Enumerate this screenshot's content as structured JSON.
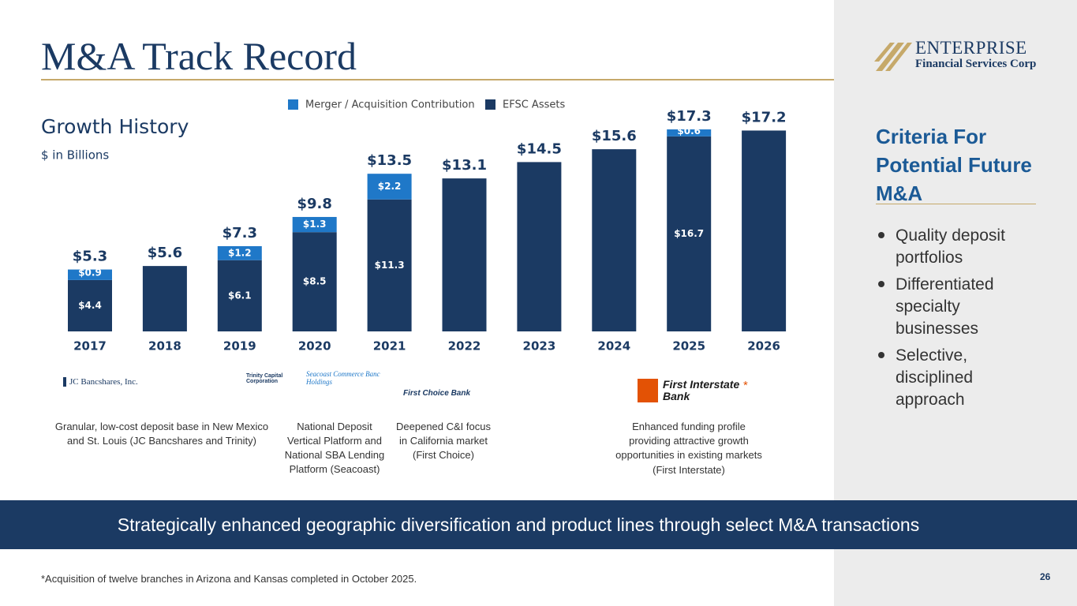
{
  "header": {
    "title": "M&A Track Record",
    "logo_name": "ENTERPRISE",
    "logo_sub": "Financial Services Corp"
  },
  "chart_data": {
    "type": "stacked-bar",
    "title": "Growth History",
    "subtitle": "$ in Billions",
    "categories": [
      "2017",
      "2018",
      "2019",
      "2020",
      "2021",
      "2022",
      "2023",
      "2024",
      "2025",
      "2026"
    ],
    "series": [
      {
        "name": "EFSC Assets",
        "color": "#1b3a63",
        "values": [
          4.4,
          5.6,
          6.1,
          8.5,
          11.3,
          13.1,
          14.5,
          15.6,
          16.7,
          17.2
        ],
        "value_labels": [
          "$4.4",
          null,
          "$6.1",
          "$8.5",
          "$11.3",
          null,
          null,
          null,
          "$16.7",
          null
        ]
      },
      {
        "name": "Merger / Acquisition Contribution",
        "color": "#1f78c8",
        "values": [
          0.9,
          null,
          1.2,
          1.3,
          2.2,
          null,
          null,
          null,
          0.6,
          null
        ],
        "value_labels": [
          "$0.9",
          null,
          "$1.2",
          "$1.3",
          "$2.2",
          null,
          null,
          null,
          "$0.6",
          null
        ]
      }
    ],
    "totals": [
      5.3,
      5.6,
      7.3,
      9.8,
      13.5,
      13.1,
      14.5,
      15.6,
      17.3,
      17.2
    ],
    "total_labels": [
      "$5.3",
      "$5.6",
      "$7.3",
      "$9.8",
      "$13.5",
      "$13.1",
      "$14.5",
      "$15.6",
      "$17.3",
      "$17.2"
    ]
  },
  "logos": [
    "JC Bancshares, Inc.",
    "Trinity Capital Corporation",
    "Seacoast Commerce Banc Holdings",
    "First Choice Bank",
    "First Interstate Bank",
    "*"
  ],
  "notes": [
    {
      "lines": [
        "Granular, low-cost deposit base in New Mexico",
        "and St. Louis (JC Bancshares and Trinity)"
      ]
    },
    {
      "lines": [
        "National Deposit",
        "Vertical Platform and",
        "National SBA Lending",
        "Platform (Seacoast)"
      ]
    },
    {
      "lines": [
        "Deepened C&I focus",
        "in California market",
        "(First Choice)"
      ]
    },
    {
      "lines": [
        "Enhanced funding profile",
        "providing attractive growth",
        "opportunities in existing markets"
      ]
    },
    {
      "lines": [
        "(First Interstate)"
      ]
    }
  ],
  "sidebar": {
    "heading": [
      "Criteria For",
      "Potential Future",
      "M&A"
    ],
    "bullets": [
      [
        "Quality deposit",
        "portfolios"
      ],
      [
        "Differentiated",
        "specialty",
        "businesses"
      ],
      [
        "Selective,",
        "disciplined",
        "approach"
      ]
    ]
  },
  "banner": "Strategically enhanced geographic diversification and product lines through select M&A transactions",
  "footnote": "*Acquisition of twelve branches in Arizona and Kansas completed in October 2025.",
  "page_number": "26"
}
